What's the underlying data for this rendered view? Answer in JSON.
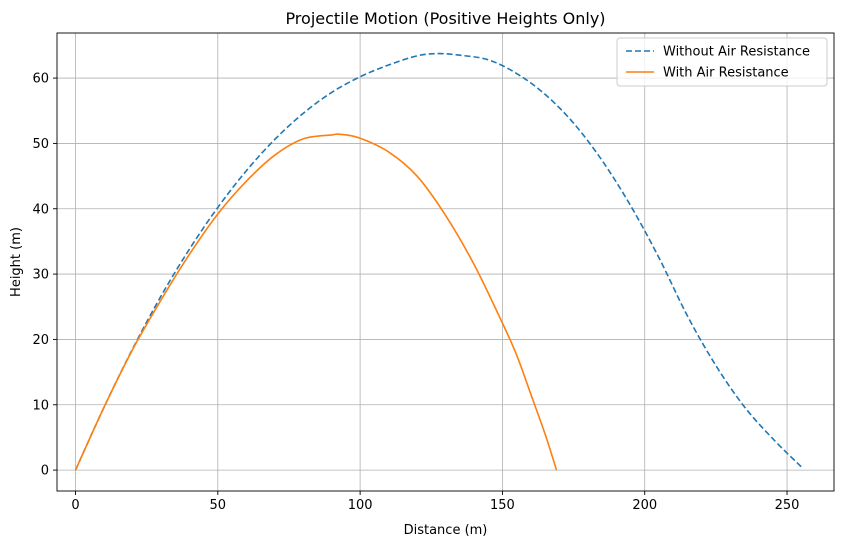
{
  "chart_data": {
    "type": "line",
    "title": "Projectile Motion (Positive Heights Only)",
    "xlabel": "Distance (m)",
    "ylabel": "Height (m)",
    "xlim": [
      -6.5,
      266.5
    ],
    "ylim": [
      -3.2,
      66.9
    ],
    "xticks": [
      0,
      50,
      100,
      150,
      200,
      250
    ],
    "yticks": [
      0,
      10,
      20,
      30,
      40,
      50,
      60
    ],
    "grid": true,
    "legend_position": "top-right",
    "series": [
      {
        "name": "Without Air Resistance",
        "color": "#1f77b4",
        "style": "dashed",
        "x": [
          0,
          10,
          20,
          30,
          40,
          50,
          60,
          70,
          80,
          90,
          100,
          110,
          120,
          127.5,
          135,
          145,
          155,
          165,
          175,
          185,
          195,
          205,
          215,
          225,
          235,
          245,
          255
        ],
        "y": [
          0,
          9.6,
          18.5,
          26.6,
          33.8,
          40.2,
          45.8,
          50.6,
          54.6,
          57.8,
          60.2,
          62.0,
          63.4,
          63.75,
          63.5,
          62.8,
          60.7,
          57.5,
          53.1,
          47.4,
          40.5,
          32.5,
          23.6,
          16.0,
          9.7,
          4.8,
          0.5
        ]
      },
      {
        "name": "With Air Resistance",
        "color": "#ff7f0e",
        "style": "solid",
        "x": [
          0,
          10,
          20,
          30,
          40,
          50,
          60,
          70,
          80,
          90,
          93,
          100,
          110,
          120,
          130,
          140,
          150,
          155,
          160,
          165,
          169
        ],
        "y": [
          0,
          9.6,
          18.4,
          26.0,
          33.0,
          39.2,
          44.2,
          48.2,
          50.7,
          51.3,
          51.4,
          50.8,
          48.7,
          45.0,
          39.0,
          31.5,
          22.5,
          17.6,
          11.6,
          5.5,
          0
        ]
      }
    ]
  }
}
